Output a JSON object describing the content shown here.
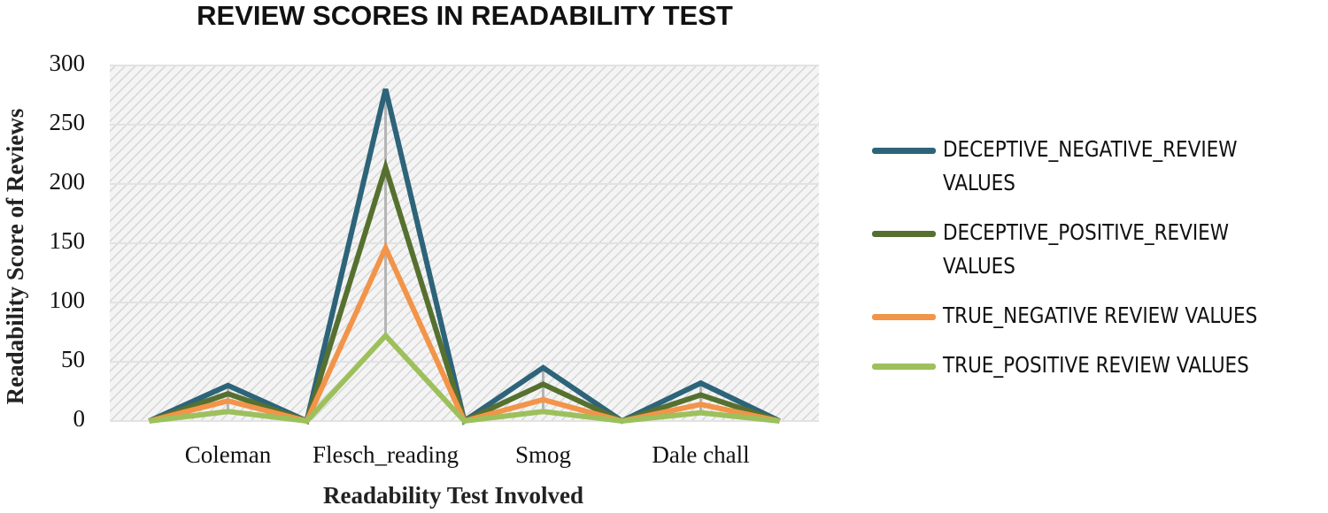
{
  "chart_data": {
    "type": "line",
    "title": "REVIEW SCORES IN READABILITY TEST",
    "x_label": "Readability Test Involved",
    "y_label": "Readability Score of  Reviews",
    "categories": [
      null,
      "Coleman",
      null,
      "Flesch_reading",
      null,
      "Smog",
      null,
      "Dale chall",
      null
    ],
    "series": [
      {
        "name": "DECEPTIVE_NEGATIVE_REVIEW VALUES",
        "color": "#2d6479",
        "values": [
          0,
          30,
          0,
          280,
          0,
          45,
          0,
          32,
          0
        ]
      },
      {
        "name": "DECEPTIVE_POSITIVE_REVIEW VALUES",
        "color": "#56702f",
        "values": [
          0,
          23,
          0,
          214,
          0,
          31,
          0,
          22,
          0
        ]
      },
      {
        "name": "TRUE_NEGATIVE REVIEW VALUES",
        "color": "#f29449",
        "values": [
          0,
          17,
          0,
          146,
          0,
          18,
          0,
          14,
          0
        ]
      },
      {
        "name": "TRUE_POSITIVE REVIEW VALUES",
        "color": "#9dc05c",
        "values": [
          0,
          8,
          0,
          72,
          0,
          8,
          0,
          7,
          0
        ]
      }
    ],
    "ylim": [
      0,
      300
    ],
    "yticks": [
      0,
      50,
      100,
      150,
      200,
      250,
      300
    ],
    "grid": true,
    "legend": "right"
  }
}
